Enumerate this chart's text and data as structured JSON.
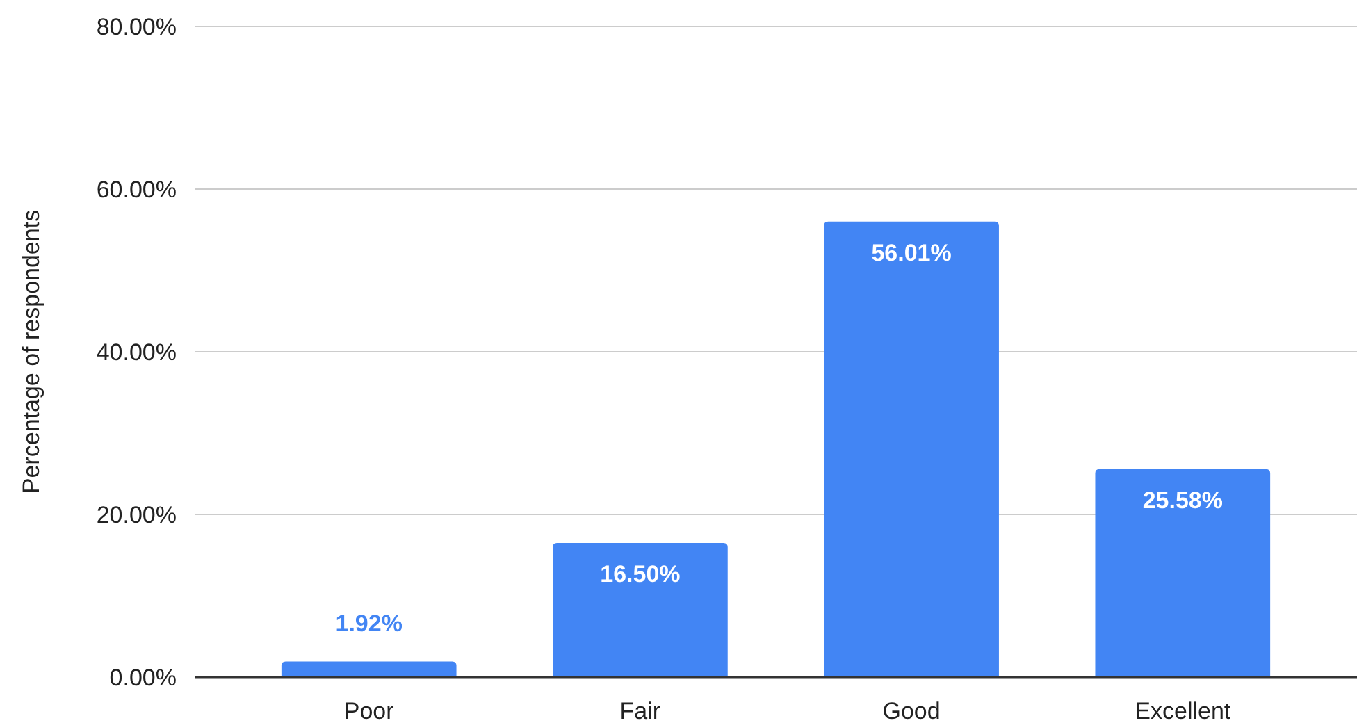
{
  "chart_data": {
    "type": "bar",
    "ylabel": "Percentage of respondents",
    "categories": [
      "Poor",
      "Fair",
      "Good",
      "Excellent"
    ],
    "series": [
      {
        "color": "#4285f4",
        "values": [
          1.92,
          16.5,
          56.01,
          25.58
        ]
      }
    ],
    "value_labels": [
      "1.92%",
      "16.50%",
      "56.01%",
      "25.58%"
    ],
    "ylim": [
      0,
      80
    ],
    "yticks": [
      {
        "value": 0,
        "label": "0.00%"
      },
      {
        "value": 20,
        "label": "20.00%"
      },
      {
        "value": 40,
        "label": "40.00%"
      },
      {
        "value": 60,
        "label": "60.00%"
      },
      {
        "value": 80,
        "label": "80.00%"
      }
    ],
    "grid": "y"
  }
}
